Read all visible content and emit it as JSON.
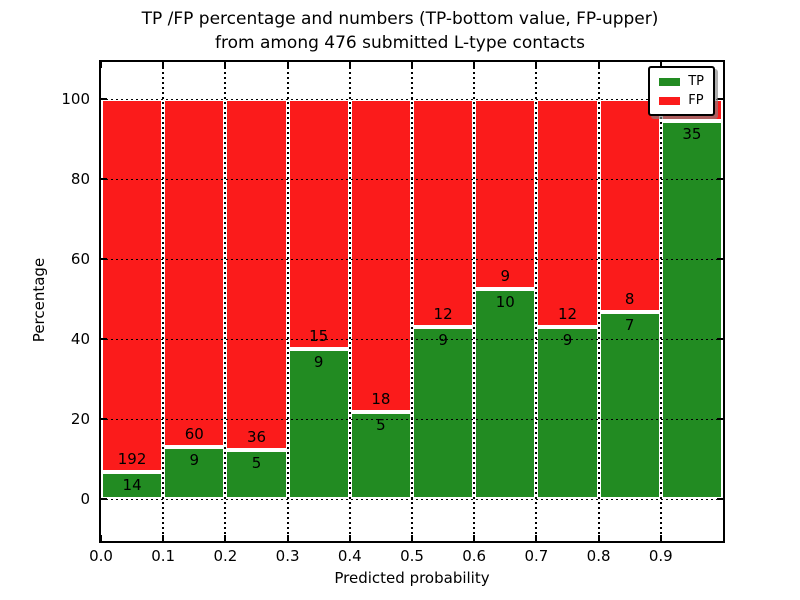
{
  "title": {
    "line1": "TP /FP percentage and numbers (TP-bottom value, FP-upper)",
    "line2": "from among 476 submitted L-type contacts"
  },
  "axes": {
    "xlabel": "Predicted probability",
    "ylabel": "Percentage",
    "x_tick_labels": [
      "0.0",
      "0.1",
      "0.2",
      "0.3",
      "0.4",
      "0.5",
      "0.6",
      "0.7",
      "0.8",
      "0.9"
    ],
    "y_tick_labels": [
      "0",
      "20",
      "40",
      "60",
      "80",
      "100"
    ],
    "y_tick_values": [
      0,
      20,
      40,
      60,
      80,
      100
    ]
  },
  "legend": {
    "items": [
      {
        "label": "TP",
        "color": "#228b22"
      },
      {
        "label": "FP",
        "color": "#fb1b1b"
      }
    ]
  },
  "chart_data": {
    "type": "bar",
    "stacked": true,
    "title": "TP /FP percentage and numbers (TP-bottom value, FP-upper) from among 476 submitted L-type contacts",
    "xlabel": "Predicted probability",
    "ylabel": "Percentage",
    "categories": [
      "0.0-0.1",
      "0.1-0.2",
      "0.2-0.3",
      "0.3-0.4",
      "0.4-0.5",
      "0.5-0.6",
      "0.6-0.7",
      "0.7-0.8",
      "0.8-0.9",
      "0.9-1.0"
    ],
    "series": [
      {
        "name": "TP",
        "color": "#228b22",
        "counts": [
          14,
          9,
          5,
          9,
          5,
          9,
          10,
          9,
          7,
          35
        ],
        "percent": [
          6.8,
          13.0,
          12.2,
          37.5,
          21.7,
          42.9,
          52.6,
          42.9,
          46.7,
          94.6
        ]
      },
      {
        "name": "FP",
        "color": "#fb1b1b",
        "counts": [
          192,
          60,
          36,
          15,
          18,
          12,
          9,
          12,
          8,
          null
        ],
        "percent": [
          93.2,
          87.0,
          87.8,
          62.5,
          78.3,
          57.1,
          47.4,
          57.1,
          53.3,
          5.4
        ]
      }
    ],
    "bar_labels": {
      "tp": [
        "14",
        "9",
        "5",
        "9",
        "5",
        "9",
        "10",
        "9",
        "7",
        "35"
      ],
      "fp": [
        "192",
        "60",
        "36",
        "15",
        "18",
        "12",
        "9",
        "12",
        "8",
        ""
      ]
    },
    "total_submitted": 476,
    "xlim": [
      0.0,
      1.0
    ],
    "ylim": [
      -10.5,
      109.3
    ],
    "grid": "dotted",
    "legend_position": "upper right"
  }
}
